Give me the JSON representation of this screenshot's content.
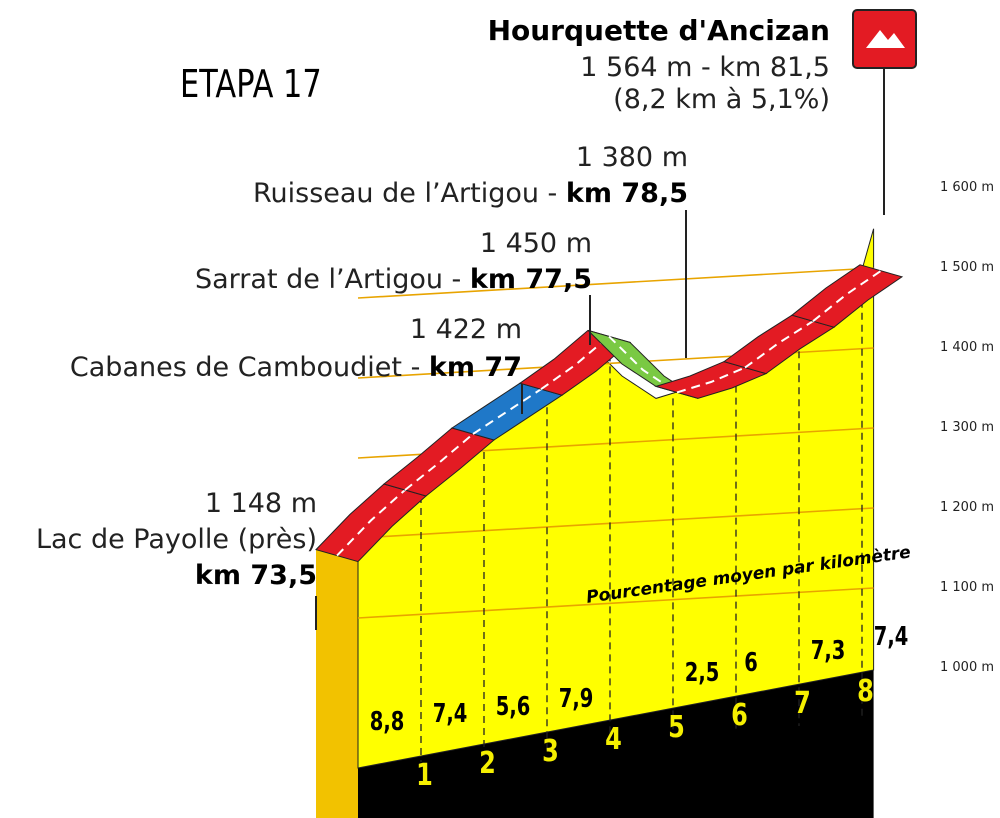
{
  "stage_title": "ETAPA 17",
  "summit": {
    "name": "Hourquette d'Ancizan",
    "line1": "1 564 m - km 81,5",
    "line2": "(8,2 km à 5,1%)"
  },
  "waypoints": [
    {
      "alt": "1 380 m",
      "name": "Ruisseau de l’Artigou -",
      "km": "km 78,5"
    },
    {
      "alt": "1 450 m",
      "name": "Sarrat de l’Artigou -",
      "km": "km 77,5"
    },
    {
      "alt": "1 422 m",
      "name": "Cabanes de Camboudiet -",
      "km": "km 77"
    },
    {
      "alt": "1 148 m",
      "name": "Lac de Payolle (près)",
      "km": "km 73,5"
    }
  ],
  "avg_caption": "Pourcentage moyen par kilomètre",
  "colors": {
    "hard": "#e31b23",
    "medium": "#1f78c8",
    "easy": "#7ac943",
    "fill": "#ffff00",
    "base": "#000000"
  },
  "chart_data": {
    "type": "area",
    "x": [
      0,
      0.5,
      1,
      1.5,
      2,
      2.5,
      3,
      3.5,
      4,
      4.5,
      5,
      5.5,
      6,
      6.5,
      7,
      7.5,
      8,
      8.2
    ],
    "y": [
      1148,
      1192,
      1230,
      1264,
      1300,
      1328,
      1356,
      1386,
      1422,
      1380,
      1352,
      1365,
      1383,
      1414,
      1441,
      1475,
      1504,
      1564
    ],
    "y_ticks": [
      "1 000 m",
      "1 100 m",
      "1 200 m",
      "1 300 m",
      "1 400 m",
      "1 500 m",
      "1 600 m"
    ],
    "ylim": [
      1000,
      1600
    ],
    "km_markers": [
      "1",
      "2",
      "3",
      "4",
      "5",
      "6",
      "7",
      "8"
    ],
    "gradients": [
      "8,8",
      "7,4",
      "5,6",
      "7,9",
      "",
      "2,5",
      "6",
      "7,3",
      "7,4"
    ],
    "segment_difficulty": [
      "hard",
      "hard",
      "medium",
      "hard",
      "easy",
      "hard",
      "hard",
      "hard"
    ],
    "grid": true
  }
}
